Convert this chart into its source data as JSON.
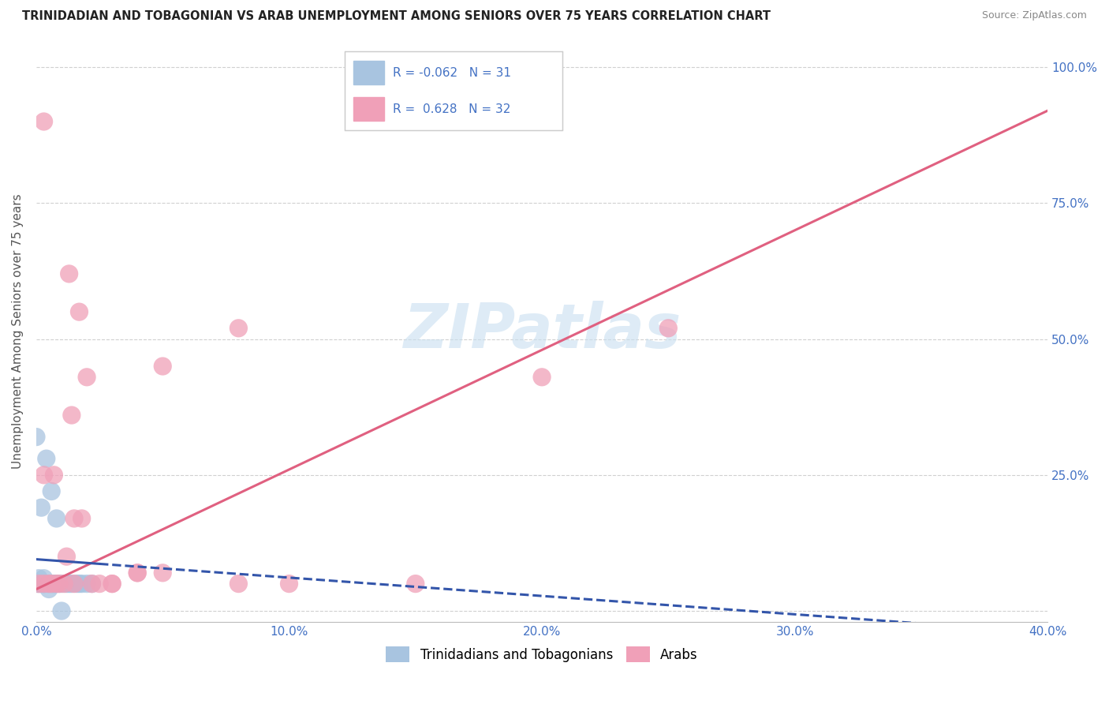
{
  "title": "TRINIDADIAN AND TOBAGONIAN VS ARAB UNEMPLOYMENT AMONG SENIORS OVER 75 YEARS CORRELATION CHART",
  "source": "Source: ZipAtlas.com",
  "ylabel": "Unemployment Among Seniors over 75 years",
  "xlim": [
    0.0,
    0.4
  ],
  "ylim": [
    -0.02,
    1.05
  ],
  "xticks": [
    0.0,
    0.1,
    0.2,
    0.3,
    0.4
  ],
  "yticks": [
    0.0,
    0.25,
    0.5,
    0.75,
    1.0
  ],
  "left_ytick_labels": [
    "",
    "",
    "",
    "",
    ""
  ],
  "xtick_labels": [
    "0.0%",
    "10.0%",
    "20.0%",
    "30.0%",
    "40.0%"
  ],
  "right_ytick_labels": [
    "",
    "25.0%",
    "50.0%",
    "75.0%",
    "100.0%"
  ],
  "background_color": "#ffffff",
  "grid_color": "#d0d0d0",
  "watermark": "ZIPatlas",
  "blue_color": "#a8c4e0",
  "pink_color": "#f0a0b8",
  "blue_line_color": "#3355aa",
  "pink_line_color": "#e06080",
  "R_blue": -0.062,
  "N_blue": 31,
  "R_pink": 0.628,
  "N_pink": 32,
  "blue_scatter_x": [
    0.002,
    0.008,
    0.002,
    0.006,
    0.003,
    0.001,
    0.004,
    0.008,
    0.0,
    0.003,
    0.005,
    0.007,
    0.009,
    0.012,
    0.014,
    0.016,
    0.018,
    0.002,
    0.004,
    0.006,
    0.01,
    0.013,
    0.017,
    0.02,
    0.001,
    0.003,
    0.022,
    0.005,
    0.007,
    0.01,
    0.0
  ],
  "blue_scatter_y": [
    0.19,
    0.17,
    0.05,
    0.05,
    0.06,
    0.06,
    0.05,
    0.05,
    0.05,
    0.05,
    0.05,
    0.05,
    0.05,
    0.05,
    0.05,
    0.05,
    0.05,
    0.05,
    0.28,
    0.22,
    0.05,
    0.05,
    0.05,
    0.05,
    0.05,
    0.05,
    0.05,
    0.04,
    0.05,
    0.0,
    0.32
  ],
  "pink_scatter_x": [
    0.003,
    0.006,
    0.009,
    0.012,
    0.015,
    0.018,
    0.001,
    0.005,
    0.013,
    0.017,
    0.008,
    0.011,
    0.014,
    0.02,
    0.025,
    0.03,
    0.04,
    0.05,
    0.08,
    0.1,
    0.15,
    0.2,
    0.25,
    0.003,
    0.007,
    0.015,
    0.022,
    0.03,
    0.04,
    0.05,
    0.08,
    0.003
  ],
  "pink_scatter_y": [
    0.05,
    0.05,
    0.05,
    0.1,
    0.17,
    0.17,
    0.05,
    0.05,
    0.62,
    0.55,
    0.05,
    0.05,
    0.36,
    0.43,
    0.05,
    0.05,
    0.07,
    0.45,
    0.05,
    0.05,
    0.05,
    0.43,
    0.52,
    0.25,
    0.25,
    0.05,
    0.05,
    0.05,
    0.07,
    0.07,
    0.52,
    0.9
  ],
  "pink_line_x0": 0.0,
  "pink_line_y0": 0.04,
  "pink_line_x1": 0.4,
  "pink_line_y1": 0.92,
  "blue_line_x0": 0.0,
  "blue_line_y0": 0.095,
  "blue_line_x1": 0.4,
  "blue_line_y1": -0.04
}
